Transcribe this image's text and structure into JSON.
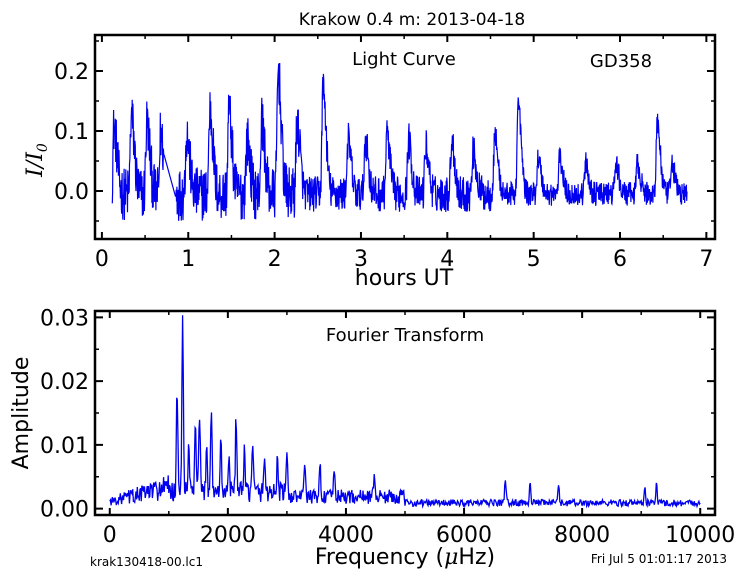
{
  "header": {
    "title": "Krakow 0.4 m:  2013-04-18",
    "footer_left": "krak130418-00.lc1",
    "footer_right": "Fri Jul  5 01:01:17 2013"
  },
  "chart_data": [
    {
      "type": "line",
      "annotation_left": "Light Curve",
      "annotation_right": "GD358",
      "xlabel": "hours UT",
      "ylabel": "I/I0",
      "ylabel_main": "I/I",
      "ylabel_sub": "0",
      "xlim": [
        -0.08,
        7.1
      ],
      "ylim": [
        -0.08,
        0.26
      ],
      "xticks": [
        0,
        1,
        2,
        3,
        4,
        5,
        6,
        7
      ],
      "xtick_labels": [
        "0",
        "1",
        "2",
        "3",
        "4",
        "5",
        "6",
        "7"
      ],
      "yticks": [
        0.0,
        0.1,
        0.2
      ],
      "ytick_labels": [
        "0.0",
        "0.1",
        "0.2"
      ],
      "grid": false,
      "color": "#0000ee",
      "x_range": [
        0.12,
        6.78
      ],
      "gap": [
        0.72,
        0.85
      ],
      "peaks": [
        [
          0.14,
          0.11
        ],
        [
          0.34,
          0.13
        ],
        [
          0.52,
          0.12
        ],
        [
          0.68,
          0.1
        ],
        [
          0.98,
          0.1
        ],
        [
          1.25,
          0.14
        ],
        [
          1.47,
          0.14
        ],
        [
          1.68,
          0.09
        ],
        [
          1.85,
          0.12
        ],
        [
          2.04,
          0.205
        ],
        [
          2.26,
          0.12
        ],
        [
          2.56,
          0.18
        ],
        [
          2.85,
          0.09
        ],
        [
          3.05,
          0.09
        ],
        [
          3.3,
          0.1
        ],
        [
          3.55,
          0.09
        ],
        [
          3.75,
          0.08
        ],
        [
          4.05,
          0.09
        ],
        [
          4.3,
          0.07
        ],
        [
          4.55,
          0.1
        ],
        [
          4.82,
          0.15
        ],
        [
          5.05,
          0.06
        ],
        [
          5.3,
          0.06
        ],
        [
          5.6,
          0.05
        ],
        [
          5.95,
          0.05
        ],
        [
          6.2,
          0.05
        ],
        [
          6.43,
          0.12
        ],
        [
          6.6,
          0.05
        ]
      ]
    },
    {
      "type": "line",
      "annotation": "Fourier Transform",
      "xlabel": "Frequency (μHz)",
      "xlabel_main": "Frequency (",
      "xlabel_mu": "μ",
      "xlabel_tail": "Hz)",
      "ylabel": "Amplitude",
      "xlim": [
        -250,
        10250
      ],
      "ylim": [
        -0.001,
        0.031
      ],
      "xticks": [
        0,
        2000,
        4000,
        6000,
        8000,
        10000
      ],
      "xtick_labels": [
        "0",
        "2000",
        "4000",
        "6000",
        "8000",
        "10000"
      ],
      "yticks": [
        0.0,
        0.01,
        0.02,
        0.03
      ],
      "ytick_labels": [
        "0.00",
        "0.01",
        "0.02",
        "0.03"
      ],
      "grid": false,
      "color": "#0000ee",
      "x_range": [
        0,
        10000
      ],
      "peaks": [
        [
          1140,
          0.0155
        ],
        [
          1235,
          0.0285
        ],
        [
          1340,
          0.007
        ],
        [
          1450,
          0.011
        ],
        [
          1520,
          0.012
        ],
        [
          1640,
          0.008
        ],
        [
          1720,
          0.0135
        ],
        [
          1880,
          0.008
        ],
        [
          2020,
          0.0065
        ],
        [
          2140,
          0.012
        ],
        [
          2280,
          0.006
        ],
        [
          2420,
          0.008
        ],
        [
          2620,
          0.0055
        ],
        [
          2840,
          0.005
        ],
        [
          3000,
          0.006
        ],
        [
          3300,
          0.006
        ],
        [
          3560,
          0.005
        ],
        [
          3800,
          0.0045
        ],
        [
          4480,
          0.004
        ],
        [
          6700,
          0.004
        ],
        [
          7120,
          0.0035
        ],
        [
          7600,
          0.003
        ],
        [
          9060,
          0.0025
        ],
        [
          9260,
          0.003
        ]
      ]
    }
  ]
}
